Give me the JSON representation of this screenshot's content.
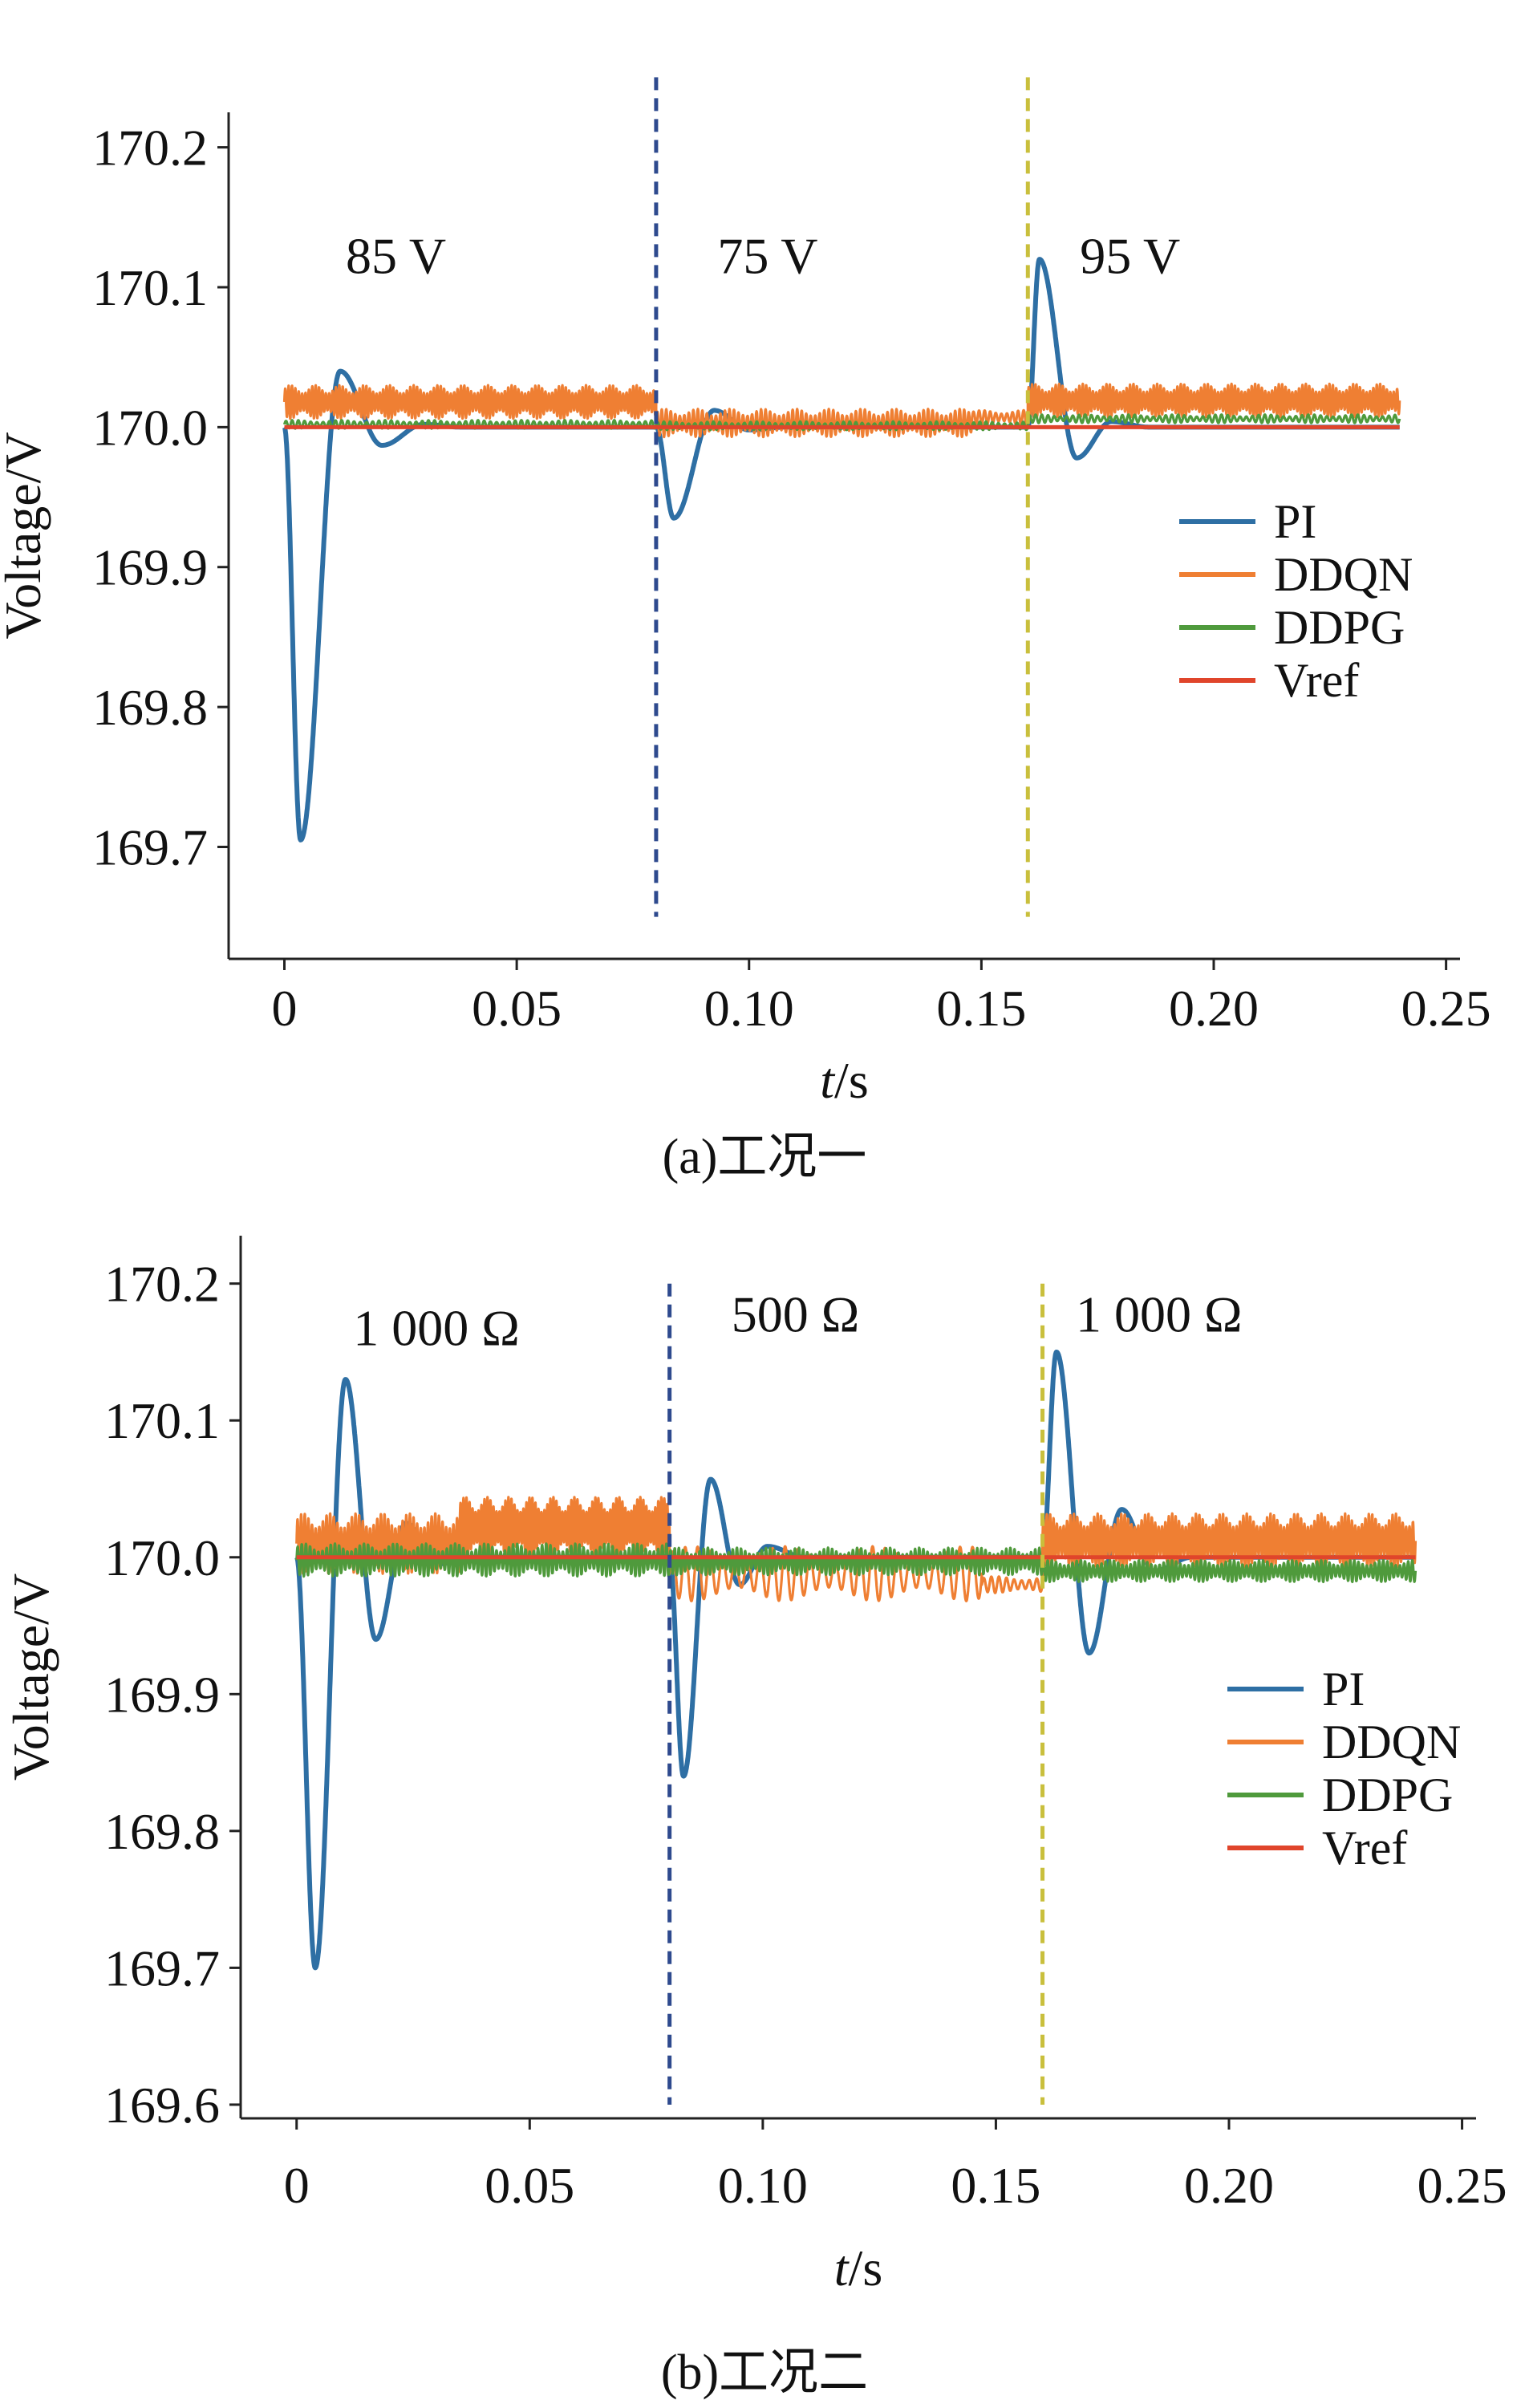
{
  "chart_data": [
    {
      "id": "a",
      "type": "line",
      "caption": "(a)工况一",
      "xlabel_italic": "t",
      "xlabel_unit": "/s",
      "ylabel": "Voltage/V",
      "xlim": [
        -0.012,
        0.253
      ],
      "ylim": [
        169.62,
        170.225
      ],
      "xticks": [
        0,
        0.05,
        0.1,
        0.15,
        0.2,
        0.25
      ],
      "xtick_labels": [
        "0",
        "0.05",
        "0.10",
        "0.15",
        "0.20",
        "0.25"
      ],
      "yticks": [
        169.7,
        169.8,
        169.9,
        170.0,
        170.1,
        170.2
      ],
      "ytick_labels": [
        "169.7",
        "169.8",
        "169.9",
        "170.0",
        "170.1",
        "170.2"
      ],
      "vlines": [
        {
          "x": 0.08,
          "y_from": 169.65,
          "y_to": 170.25,
          "color": "#2e4a8e"
        },
        {
          "x": 0.16,
          "y_from": 169.65,
          "y_to": 170.25,
          "color": "#c9bf3c"
        }
      ],
      "annotations": [
        {
          "text": "85 V",
          "x": 0.024,
          "y": 170.11
        },
        {
          "text": "75 V",
          "x": 0.104,
          "y": 170.11
        },
        {
          "text": "95 V",
          "x": 0.182,
          "y": 170.11
        }
      ],
      "legend_position": "right",
      "series": [
        {
          "name": "PI",
          "color": "#2e6fa4",
          "segments": [
            {
              "t0": 0.0,
              "t1": 0.08,
              "base": 170.0,
              "peaks": [
                [
                  0.0035,
                  -0.295
                ],
                [
                  0.012,
                  0.04
                ],
                [
                  0.021,
                  -0.013
                ],
                [
                  0.03,
                  0.002
                ]
              ],
              "decay": 0
            },
            {
              "t0": 0.08,
              "t1": 0.16,
              "base": 170.0,
              "peaks": [
                [
                  0.0838,
                  -0.065
                ],
                [
                  0.0925,
                  0.012
                ],
                [
                  0.1,
                  -0.002
                ]
              ],
              "decay": 0
            },
            {
              "t0": 0.16,
              "t1": 0.24,
              "base": 170.0,
              "peaks": [
                [
                  0.1625,
                  0.12
                ],
                [
                  0.1705,
                  -0.022
                ],
                [
                  0.178,
                  0.004
                ]
              ],
              "decay": 0
            }
          ]
        },
        {
          "name": "DDQN",
          "color": "#ef7f33",
          "segments": [
            {
              "t0": 0.0,
              "t1": 0.08,
              "center": 170.018,
              "amp": 0.012,
              "cycles": 110
            },
            {
              "t0": 0.08,
              "t1": 0.148,
              "center": 170.003,
              "amp": 0.01,
              "cycles": 70
            },
            {
              "t0": 0.148,
              "t1": 0.16,
              "center": 170.007,
              "amp": 0.005,
              "cycles": 10
            },
            {
              "t0": 0.16,
              "t1": 0.24,
              "center": 170.019,
              "amp": 0.012,
              "cycles": 110
            }
          ]
        },
        {
          "name": "DDPG",
          "color": "#4f9a3c",
          "segments": [
            {
              "t0": 0.0,
              "t1": 0.08,
              "center": 170.002,
              "amp": 0.003,
              "cycles": 60
            },
            {
              "t0": 0.08,
              "t1": 0.16,
              "center": 170.001,
              "amp": 0.003,
              "cycles": 60
            },
            {
              "t0": 0.16,
              "t1": 0.24,
              "center": 170.006,
              "amp": 0.003,
              "cycles": 60
            }
          ]
        },
        {
          "name": "Vref",
          "color": "#e0452b",
          "value": 170.0
        }
      ]
    },
    {
      "id": "b",
      "type": "line",
      "caption": "(b)工况二",
      "xlabel_italic": "t",
      "xlabel_unit": "/s",
      "ylabel": "Voltage/V",
      "xlim": [
        -0.012,
        0.253
      ],
      "ylim": [
        169.59,
        170.235
      ],
      "xticks": [
        0,
        0.05,
        0.1,
        0.15,
        0.2,
        0.25
      ],
      "xtick_labels": [
        "0",
        "0.05",
        "0.10",
        "0.15",
        "0.20",
        "0.25"
      ],
      "yticks": [
        169.6,
        169.7,
        169.8,
        169.9,
        170.0,
        170.1,
        170.2
      ],
      "ytick_labels": [
        "169.6",
        "169.7",
        "169.8",
        "169.9",
        "170.0",
        "170.1",
        "170.2"
      ],
      "vlines": [
        {
          "x": 0.08,
          "y_from": 169.6,
          "y_to": 170.2,
          "color": "#2e4a8e"
        },
        {
          "x": 0.16,
          "y_from": 169.6,
          "y_to": 170.2,
          "color": "#c9bf3c"
        }
      ],
      "annotations": [
        {
          "text": "1 000 Ω",
          "x": 0.03,
          "y": 170.155
        },
        {
          "text": "500 Ω",
          "x": 0.107,
          "y": 170.165
        },
        {
          "text": "1 000 Ω",
          "x": 0.185,
          "y": 170.165
        }
      ],
      "legend_position": "right",
      "series": [
        {
          "name": "PI",
          "color": "#2e6fa4",
          "segments": [
            {
              "t0": 0.0,
              "t1": 0.08,
              "base": 170.0,
              "peaks": [
                [
                  0.004,
                  -0.3
                ],
                [
                  0.0105,
                  0.13
                ],
                [
                  0.017,
                  -0.06
                ],
                [
                  0.0235,
                  0.025
                ],
                [
                  0.03,
                  -0.005
                ]
              ],
              "decay": 0
            },
            {
              "t0": 0.08,
              "t1": 0.16,
              "base": 170.0,
              "peaks": [
                [
                  0.083,
                  -0.16
                ],
                [
                  0.0888,
                  0.057
                ],
                [
                  0.095,
                  -0.02
                ],
                [
                  0.101,
                  0.008
                ]
              ],
              "decay": 0
            },
            {
              "t0": 0.16,
              "t1": 0.24,
              "base": 170.0,
              "peaks": [
                [
                  0.163,
                  0.15
                ],
                [
                  0.17,
                  -0.07
                ],
                [
                  0.177,
                  0.035
                ],
                [
                  0.184,
                  -0.01
                ]
              ],
              "decay": 0
            }
          ]
        },
        {
          "name": "DDQN",
          "color": "#ef7f33",
          "segments": [
            {
              "t0": 0.0,
              "t1": 0.035,
              "center": 170.01,
              "amp": 0.022,
              "cycles": 45
            },
            {
              "t0": 0.035,
              "t1": 0.08,
              "center": 170.022,
              "amp": 0.022,
              "cycles": 70
            },
            {
              "t0": 0.08,
              "t1": 0.147,
              "center": 169.988,
              "amp": 0.02,
              "cycles": 25
            },
            {
              "t0": 0.147,
              "t1": 0.16,
              "center": 169.98,
              "amp": 0.006,
              "cycles": 8
            },
            {
              "t0": 0.16,
              "t1": 0.24,
              "center": 170.012,
              "amp": 0.02,
              "cycles": 110
            }
          ]
        },
        {
          "name": "DDPG",
          "color": "#4f9a3c",
          "segments": [
            {
              "t0": 0.0,
              "t1": 0.08,
              "center": 169.998,
              "amp": 0.012,
              "cycles": 90
            },
            {
              "t0": 0.08,
              "t1": 0.16,
              "center": 169.997,
              "amp": 0.01,
              "cycles": 90
            },
            {
              "t0": 0.16,
              "t1": 0.24,
              "center": 169.99,
              "amp": 0.008,
              "cycles": 90
            }
          ]
        },
        {
          "name": "Vref",
          "color": "#e0452b",
          "value": 170.0
        }
      ]
    }
  ]
}
